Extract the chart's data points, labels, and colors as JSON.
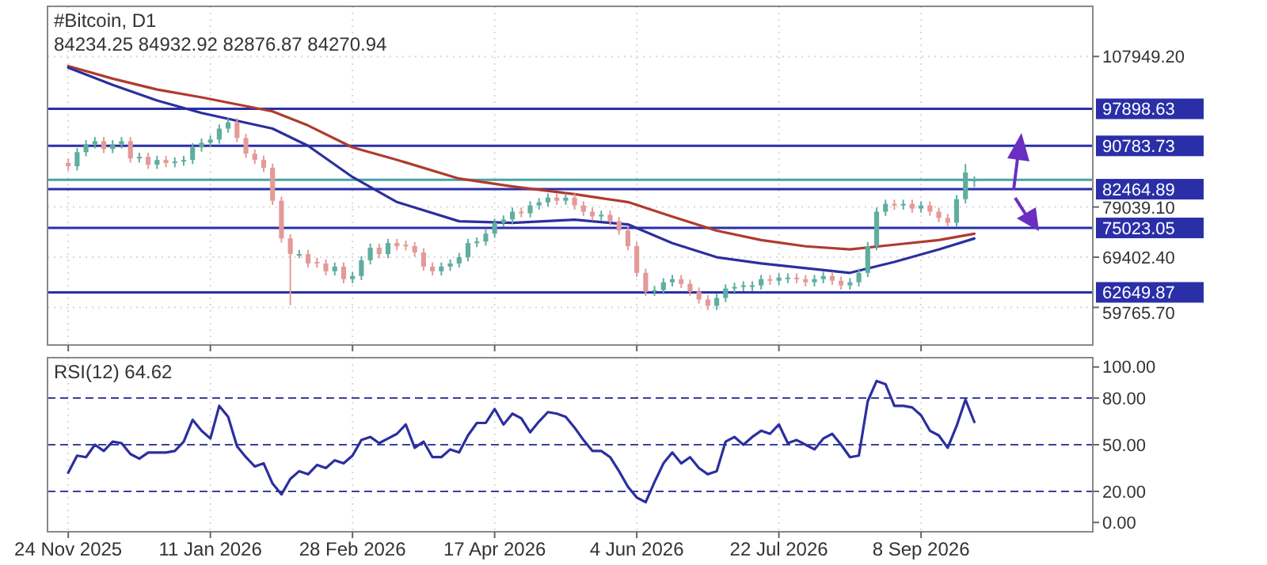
{
  "chart_data": [
    {
      "type": "candlestick",
      "title": "#Bitcoin, D1",
      "subtitle": "84234.25 84932.92 82876.87 84270.94",
      "x": [
        "2025-11-24",
        "2025-11-27",
        "2025-11-30",
        "2025-12-03",
        "2025-12-06",
        "2025-12-09",
        "2025-12-12",
        "2025-12-15",
        "2025-12-18",
        "2025-12-21",
        "2025-12-24",
        "2025-12-27",
        "2025-12-30",
        "2026-01-02",
        "2026-01-05",
        "2026-01-08",
        "2026-01-11",
        "2026-01-14",
        "2026-01-17",
        "2026-01-20",
        "2026-01-23",
        "2026-01-26",
        "2026-01-29",
        "2026-02-01",
        "2026-02-04",
        "2026-02-07",
        "2026-02-10",
        "2026-02-13",
        "2026-02-16",
        "2026-02-19",
        "2026-02-22",
        "2026-02-25",
        "2026-02-28",
        "2026-03-03",
        "2026-03-06",
        "2026-03-09",
        "2026-03-12",
        "2026-03-15",
        "2026-03-18",
        "2026-03-21",
        "2026-03-24",
        "2026-03-27",
        "2026-03-30",
        "2026-04-02",
        "2026-04-05",
        "2026-04-08",
        "2026-04-11",
        "2026-04-14",
        "2026-04-17",
        "2026-04-20",
        "2026-04-23",
        "2026-04-26",
        "2026-04-29",
        "2026-05-02",
        "2026-05-05",
        "2026-05-08",
        "2026-05-11",
        "2026-05-14",
        "2026-05-17",
        "2026-05-20",
        "2026-05-23",
        "2026-05-26",
        "2026-05-29",
        "2026-06-01",
        "2026-06-04",
        "2026-06-07",
        "2026-06-10",
        "2026-06-13",
        "2026-06-16",
        "2026-06-19",
        "2026-06-22",
        "2026-06-25",
        "2026-06-28",
        "2026-07-01",
        "2026-07-04",
        "2026-07-07",
        "2026-07-10",
        "2026-07-13",
        "2026-07-16",
        "2026-07-19",
        "2026-07-22",
        "2026-07-25",
        "2026-07-28",
        "2026-07-31",
        "2026-08-03",
        "2026-08-06",
        "2026-08-09",
        "2026-08-12",
        "2026-08-15",
        "2026-08-18",
        "2026-08-21",
        "2026-08-24",
        "2026-08-27",
        "2026-08-30",
        "2026-09-02",
        "2026-09-05",
        "2026-09-08",
        "2026-09-11",
        "2026-09-14",
        "2026-09-17",
        "2026-09-20",
        "2026-09-23",
        "2026-09-26"
      ],
      "ohlc": [
        [
          87500,
          88300,
          86070,
          86870
        ],
        [
          86870,
          90380,
          86070,
          89580
        ],
        [
          89580,
          91890,
          88780,
          91090
        ],
        [
          91090,
          92490,
          90290,
          91690
        ],
        [
          91690,
          92490,
          89390,
          90190
        ],
        [
          90190,
          91890,
          89390,
          91090
        ],
        [
          91090,
          92490,
          90290,
          91690
        ],
        [
          91690,
          92490,
          87580,
          88380
        ],
        [
          88380,
          89480,
          87580,
          88680
        ],
        [
          88680,
          89480,
          86370,
          87170
        ],
        [
          87170,
          88880,
          86370,
          88080
        ],
        [
          88080,
          88880,
          86680,
          87480
        ],
        [
          87480,
          88580,
          86680,
          87780
        ],
        [
          87780,
          88880,
          86980,
          88080
        ],
        [
          88080,
          91290,
          87280,
          90490
        ],
        [
          90490,
          92190,
          89690,
          91390
        ],
        [
          91390,
          92790,
          90590,
          91990
        ],
        [
          91990,
          94900,
          91190,
          94100
        ],
        [
          94100,
          96100,
          93300,
          95300
        ],
        [
          95300,
          96100,
          91490,
          92290
        ],
        [
          92290,
          93090,
          88480,
          89280
        ],
        [
          89280,
          90080,
          87280,
          88080
        ],
        [
          88080,
          88880,
          85770,
          86570
        ],
        [
          86570,
          87370,
          79450,
          80250
        ],
        [
          80250,
          81050,
          72220,
          73020
        ],
        [
          73020,
          73820,
          60200,
          70010
        ],
        [
          70010,
          70810,
          69210,
          70010
        ],
        [
          70010,
          70810,
          67400,
          68200
        ],
        [
          68500,
          69300,
          67400,
          68200
        ],
        [
          68200,
          69000,
          65900,
          66700
        ],
        [
          66700,
          68400,
          65900,
          67600
        ],
        [
          67600,
          68400,
          64390,
          65190
        ],
        [
          65190,
          66600,
          64390,
          65800
        ],
        [
          65800,
          69610,
          65000,
          68810
        ],
        [
          68810,
          72020,
          68010,
          71220
        ],
        [
          71220,
          72020,
          69210,
          70010
        ],
        [
          70010,
          72920,
          69210,
          72120
        ],
        [
          72120,
          72920,
          70720,
          71520
        ],
        [
          71800,
          72600,
          70720,
          71520
        ],
        [
          71520,
          72320,
          69510,
          70310
        ],
        [
          70310,
          71110,
          66800,
          67600
        ],
        [
          67600,
          68400,
          65900,
          66700
        ],
        [
          66700,
          68400,
          65900,
          67600
        ],
        [
          67600,
          69000,
          66800,
          68200
        ],
        [
          68200,
          70210,
          67400,
          69410
        ],
        [
          69410,
          72920,
          68610,
          72120
        ],
        [
          72120,
          73220,
          71320,
          72420
        ],
        [
          72420,
          74720,
          71620,
          73920
        ],
        [
          73920,
          76830,
          73120,
          76030
        ],
        [
          76030,
          77440,
          75230,
          76640
        ],
        [
          76640,
          78940,
          75840,
          78140
        ],
        [
          78140,
          78940,
          77040,
          77840
        ],
        [
          77840,
          80140,
          77040,
          79340
        ],
        [
          79340,
          80750,
          78540,
          79950
        ],
        [
          79950,
          81650,
          79150,
          80850
        ],
        [
          80850,
          81650,
          79450,
          80250
        ],
        [
          80250,
          81650,
          79450,
          80850
        ],
        [
          80850,
          81650,
          78540,
          79340
        ],
        [
          79340,
          80140,
          77340,
          78140
        ],
        [
          78140,
          78940,
          76440,
          77240
        ],
        [
          77240,
          78340,
          76440,
          77540
        ],
        [
          77540,
          78340,
          75540,
          76340
        ],
        [
          76340,
          77140,
          73730,
          74530
        ],
        [
          74530,
          75330,
          70720,
          71520
        ],
        [
          71520,
          72320,
          65600,
          66400
        ],
        [
          66400,
          67200,
          61980,
          62780
        ],
        [
          62780,
          63890,
          61980,
          63090
        ],
        [
          63090,
          65390,
          62290,
          64590
        ],
        [
          64590,
          65990,
          63790,
          65190
        ],
        [
          65190,
          65990,
          63490,
          64290
        ],
        [
          64290,
          65090,
          61980,
          62780
        ],
        [
          62780,
          63580,
          60480,
          61280
        ],
        [
          61280,
          62080,
          59270,
          60070
        ],
        [
          60070,
          62380,
          59270,
          61580
        ],
        [
          61580,
          64190,
          60780,
          63390
        ],
        [
          63390,
          64490,
          62590,
          63690
        ],
        [
          63690,
          64790,
          62890,
          63990
        ],
        [
          63700,
          64790,
          62900,
          63990
        ],
        [
          63990,
          65990,
          63190,
          65190
        ],
        [
          65190,
          65990,
          64090,
          64890
        ],
        [
          64890,
          66290,
          64090,
          65490
        ],
        [
          65200,
          66290,
          64400,
          65490
        ],
        [
          65490,
          66290,
          64390,
          65190
        ],
        [
          65190,
          65990,
          63790,
          64590
        ],
        [
          64590,
          65990,
          63790,
          65190
        ],
        [
          65190,
          66600,
          64390,
          65800
        ],
        [
          65800,
          66600,
          64090,
          64890
        ],
        [
          64890,
          65690,
          63190,
          63990
        ],
        [
          63990,
          65390,
          63190,
          64590
        ],
        [
          64590,
          67200,
          63790,
          66400
        ],
        [
          66400,
          72320,
          65600,
          71520
        ],
        [
          71520,
          78940,
          70720,
          78140
        ],
        [
          78140,
          80450,
          77340,
          79650
        ],
        [
          79650,
          80450,
          78540,
          79340
        ],
        [
          79340,
          80450,
          78540,
          79650
        ],
        [
          79650,
          80450,
          77940,
          78740
        ],
        [
          78740,
          80140,
          77940,
          79340
        ],
        [
          79340,
          80140,
          77340,
          78140
        ],
        [
          78140,
          78940,
          76140,
          76940
        ],
        [
          76940,
          77740,
          75230,
          76030
        ],
        [
          76030,
          81350,
          75230,
          80550
        ],
        [
          80550,
          87300,
          79750,
          85670
        ],
        [
          84234.25,
          84932.92,
          82876.87,
          84270.94
        ]
      ],
      "series": [
        {
          "type": "line",
          "color": "#b03a2e",
          "x": [
            "2025-11-24",
            "2025-12-09",
            "2025-12-24",
            "2026-01-08",
            "2026-02-01",
            "2026-02-13",
            "2026-02-28",
            "2026-03-15",
            "2026-04-05",
            "2026-04-23",
            "2026-05-14",
            "2026-06-01",
            "2026-06-16",
            "2026-07-01",
            "2026-07-16",
            "2026-07-31",
            "2026-08-15",
            "2026-08-30",
            "2026-09-14",
            "2026-09-26"
          ],
          "values": [
            106100,
            103700,
            101600,
            100100,
            97400,
            94700,
            90500,
            88100,
            84500,
            83000,
            81500,
            80000,
            77200,
            74500,
            72700,
            71500,
            70900,
            71800,
            72700,
            73900
          ]
        },
        {
          "type": "line",
          "color": "#2b2f9e",
          "x": [
            "2025-11-24",
            "2025-12-09",
            "2025-12-24",
            "2026-01-08",
            "2026-02-01",
            "2026-02-13",
            "2026-02-28",
            "2026-03-15",
            "2026-04-05",
            "2026-04-23",
            "2026-05-14",
            "2026-06-01",
            "2026-06-16",
            "2026-07-01",
            "2026-07-16",
            "2026-07-31",
            "2026-08-15",
            "2026-08-30",
            "2026-09-14",
            "2026-09-26"
          ],
          "values": [
            105800,
            102500,
            99500,
            97100,
            94100,
            90800,
            84800,
            80000,
            76300,
            76000,
            76600,
            75700,
            72100,
            69400,
            68200,
            67300,
            66400,
            68500,
            70900,
            73000
          ]
        }
      ],
      "xlim": [
        "2025-11-17",
        "2026-11-05"
      ],
      "xticks": [
        {
          "value": "2025-11-24",
          "label": null
        },
        {
          "value": "2026-01-11",
          "label": null
        },
        {
          "value": "2026-02-28",
          "label": null
        },
        {
          "value": "2026-04-17",
          "label": null
        },
        {
          "value": "2026-06-04",
          "label": null
        },
        {
          "value": "2026-07-22",
          "label": null
        },
        {
          "value": "2026-09-08",
          "label": null
        }
      ],
      "ylim": [
        52540,
        117580
      ],
      "yticks": [
        {
          "value": 107949.2,
          "label": "107949.20"
        },
        {
          "value": 79039.1,
          "label": "79039.10"
        },
        {
          "value": 69402.4,
          "label": "69402.40"
        },
        {
          "value": 59765.7,
          "label": "59765.70"
        }
      ],
      "ref_lines": [
        {
          "axis": "y",
          "value": 97898.63,
          "label": "97898.63",
          "color": "#2a2fa8"
        },
        {
          "axis": "y",
          "value": 90783.73,
          "label": "90783.73",
          "color": "#2a2fa8"
        },
        {
          "axis": "y",
          "value": 82464.89,
          "label": "82464.89",
          "color": "#2a2fa8"
        },
        {
          "axis": "y",
          "value": 75023.05,
          "label": "75023.05",
          "color": "#2a2fa8"
        },
        {
          "axis": "y",
          "value": 62649.87,
          "label": "62649.87",
          "color": "#2a2fa8"
        },
        {
          "axis": "y",
          "value": 84270.94,
          "color": "#4aa3a3"
        }
      ],
      "grid": true,
      "tick_labels": "y"
    },
    {
      "type": "line",
      "title": "RSI(12) 64.62",
      "x": [
        "2025-11-24",
        "2025-11-27",
        "2025-11-30",
        "2025-12-03",
        "2025-12-06",
        "2025-12-09",
        "2025-12-12",
        "2025-12-15",
        "2025-12-18",
        "2025-12-21",
        "2025-12-24",
        "2025-12-27",
        "2025-12-30",
        "2026-01-02",
        "2026-01-05",
        "2026-01-08",
        "2026-01-11",
        "2026-01-14",
        "2026-01-17",
        "2026-01-20",
        "2026-01-23",
        "2026-01-26",
        "2026-01-29",
        "2026-02-01",
        "2026-02-04",
        "2026-02-07",
        "2026-02-10",
        "2026-02-13",
        "2026-02-16",
        "2026-02-19",
        "2026-02-22",
        "2026-02-25",
        "2026-02-28",
        "2026-03-03",
        "2026-03-06",
        "2026-03-09",
        "2026-03-12",
        "2026-03-15",
        "2026-03-18",
        "2026-03-21",
        "2026-03-24",
        "2026-03-27",
        "2026-03-30",
        "2026-04-02",
        "2026-04-05",
        "2026-04-08",
        "2026-04-11",
        "2026-04-14",
        "2026-04-17",
        "2026-04-20",
        "2026-04-23",
        "2026-04-26",
        "2026-04-29",
        "2026-05-02",
        "2026-05-05",
        "2026-05-08",
        "2026-05-11",
        "2026-05-14",
        "2026-05-17",
        "2026-05-20",
        "2026-05-23",
        "2026-05-26",
        "2026-05-29",
        "2026-06-01",
        "2026-06-04",
        "2026-06-07",
        "2026-06-10",
        "2026-06-13",
        "2026-06-16",
        "2026-06-19",
        "2026-06-22",
        "2026-06-25",
        "2026-06-28",
        "2026-07-01",
        "2026-07-04",
        "2026-07-07",
        "2026-07-10",
        "2026-07-13",
        "2026-07-16",
        "2026-07-19",
        "2026-07-22",
        "2026-07-25",
        "2026-07-28",
        "2026-07-31",
        "2026-08-03",
        "2026-08-06",
        "2026-08-09",
        "2026-08-12",
        "2026-08-15",
        "2026-08-18",
        "2026-08-21",
        "2026-08-24",
        "2026-08-27",
        "2026-08-30",
        "2026-09-02",
        "2026-09-05",
        "2026-09-08",
        "2026-09-11",
        "2026-09-14",
        "2026-09-17",
        "2026-09-20",
        "2026-09-23",
        "2026-09-26"
      ],
      "series": [
        {
          "color": "#2b2f9e",
          "values": [
            32,
            43,
            42,
            50,
            46,
            52,
            51,
            44,
            41,
            45,
            45,
            45,
            46,
            52,
            66,
            59,
            54,
            75,
            68,
            49,
            42,
            36,
            38,
            25,
            18,
            28,
            33,
            31,
            37,
            35,
            40,
            38,
            43,
            53,
            55,
            51,
            54,
            57,
            63,
            48,
            52,
            42,
            42,
            47,
            45,
            56,
            64,
            64,
            73,
            63,
            70,
            67,
            58,
            65,
            71,
            70,
            68,
            61,
            53,
            46,
            46,
            42,
            33,
            23,
            16,
            13,
            26,
            38,
            45,
            38,
            42,
            35,
            31,
            33,
            52,
            55,
            50,
            55,
            59,
            57,
            63,
            51,
            53,
            50,
            47,
            54,
            57,
            50,
            42,
            43,
            78,
            91,
            89,
            75,
            75,
            74,
            69,
            59,
            56,
            48,
            62,
            79,
            64.62
          ]
        }
      ],
      "xlim": [
        "2025-11-17",
        "2026-11-05"
      ],
      "xticks": [
        {
          "value": "2025-11-24",
          "label": "24 Nov 2025"
        },
        {
          "value": "2026-01-11",
          "label": "11 Jan 2026"
        },
        {
          "value": "2026-02-28",
          "label": "28 Feb 2026"
        },
        {
          "value": "2026-04-17",
          "label": "17 Apr 2026"
        },
        {
          "value": "2026-06-04",
          "label": "4 Jun 2026"
        },
        {
          "value": "2026-07-22",
          "label": "22 Jul 2026"
        },
        {
          "value": "2026-09-08",
          "label": "8 Sep 2026"
        }
      ],
      "ylim": [
        -6,
        106
      ],
      "yticks": [
        {
          "value": 100,
          "label": "100.00"
        },
        {
          "value": 80,
          "label": "80.00"
        },
        {
          "value": 50,
          "label": "50.00"
        },
        {
          "value": 20,
          "label": "20.00"
        },
        {
          "value": 0,
          "label": "0.00"
        }
      ],
      "ref_lines": [
        {
          "axis": "y",
          "value": 80,
          "color": "#3a3f9e",
          "line_style": "dashed"
        },
        {
          "axis": "y",
          "value": 50,
          "color": "#3a3f9e",
          "line_style": "dashed"
        },
        {
          "axis": "y",
          "value": 20,
          "color": "#3a3f9e",
          "line_style": "dashed"
        }
      ],
      "grid": "x"
    }
  ]
}
